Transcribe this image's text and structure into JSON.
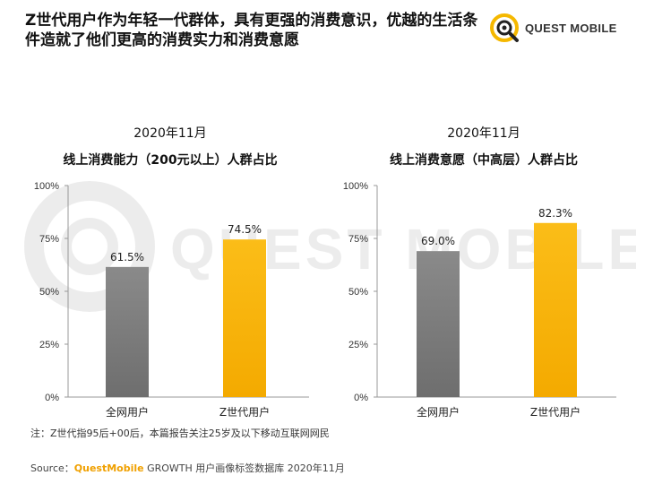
{
  "headline": "Z世代用户作为年轻一代群体，具有更强的消费意识，优越的生活条件造就了他们更高的消费实力和消费意愿",
  "logo": {
    "text": "QUEST MOBILE"
  },
  "watermark": "QUEST MOBILE",
  "colors": {
    "gray": "#8a8a8a",
    "gray_dark": "#6e6e6e",
    "yellow": "#fbbd18",
    "yellow_dark": "#f4aa00",
    "axis": "#999999"
  },
  "chart_data": [
    {
      "type": "bar",
      "title": "2020年11月",
      "subtitle": "线上消费能力（200元以上）人群占比",
      "categories": [
        "全网用户",
        "Z世代用户"
      ],
      "values": [
        61.5,
        74.5
      ],
      "value_labels": [
        "61.5%",
        "74.5%"
      ],
      "yticks": [
        "0%",
        "25%",
        "50%",
        "75%",
        "100%"
      ],
      "ylim": [
        0,
        100
      ],
      "colors": [
        "gray",
        "yellow"
      ]
    },
    {
      "type": "bar",
      "title": "2020年11月",
      "subtitle": "线上消费意愿（中高层）人群占比",
      "categories": [
        "全网用户",
        "Z世代用户"
      ],
      "values": [
        69.0,
        82.3
      ],
      "value_labels": [
        "69.0%",
        "82.3%"
      ],
      "yticks": [
        "0%",
        "25%",
        "50%",
        "75%",
        "100%"
      ],
      "ylim": [
        0,
        100
      ],
      "colors": [
        "gray",
        "yellow"
      ]
    }
  ],
  "footnote": "注：Z世代指95后+00后，本篇报告关注25岁及以下移动互联网网民",
  "source": {
    "prefix": "Source：",
    "brand": "QuestMobile",
    "rest": " GROWTH 用户画像标签数据库 2020年11月"
  }
}
